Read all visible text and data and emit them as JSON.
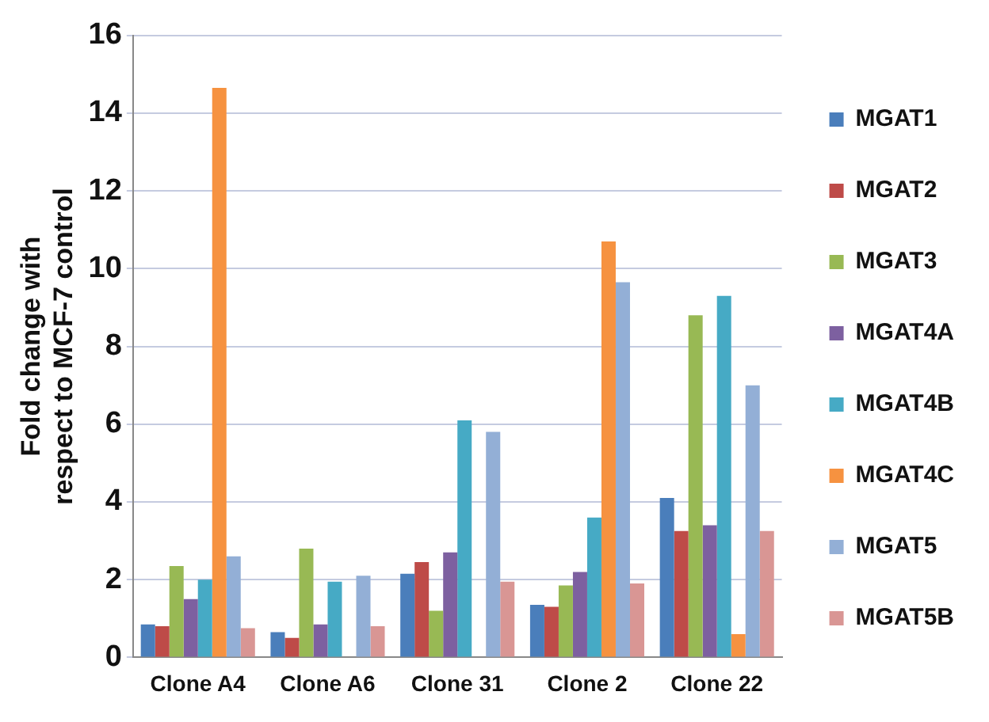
{
  "chart_data": {
    "type": "bar",
    "ylabel": "Fold change with respect to MCF-7 control",
    "categories": [
      "Clone A4",
      "Clone A6",
      "Clone 31",
      "Clone 2",
      "Clone 22"
    ],
    "series": [
      {
        "name": "MGAT1",
        "color": "#4a7ebb",
        "values": [
          0.85,
          0.65,
          2.15,
          1.35,
          4.1
        ]
      },
      {
        "name": "MGAT2",
        "color": "#be4b48",
        "values": [
          0.8,
          0.5,
          2.45,
          1.3,
          3.25
        ]
      },
      {
        "name": "MGAT3",
        "color": "#98b954",
        "values": [
          2.35,
          2.8,
          1.2,
          1.85,
          8.8
        ]
      },
      {
        "name": "MGAT4A",
        "color": "#7d60a0",
        "values": [
          1.5,
          0.85,
          2.7,
          2.2,
          3.4
        ]
      },
      {
        "name": "MGAT4B",
        "color": "#46aac5",
        "values": [
          2.0,
          1.95,
          6.1,
          3.6,
          9.3
        ]
      },
      {
        "name": "MGAT4C",
        "color": "#f69240",
        "values": [
          14.65,
          null,
          null,
          10.7,
          0.6
        ]
      },
      {
        "name": "MGAT5",
        "color": "#93afd6",
        "values": [
          2.6,
          2.1,
          5.8,
          9.65,
          7.0
        ]
      },
      {
        "name": "MGAT5B",
        "color": "#d99694",
        "values": [
          0.75,
          0.8,
          1.95,
          1.9,
          3.25
        ]
      }
    ],
    "ylim": [
      0,
      16
    ],
    "yticks": [
      0,
      2,
      4,
      6,
      8,
      10,
      12,
      14,
      16
    ],
    "grid": "y",
    "legend": "right"
  }
}
